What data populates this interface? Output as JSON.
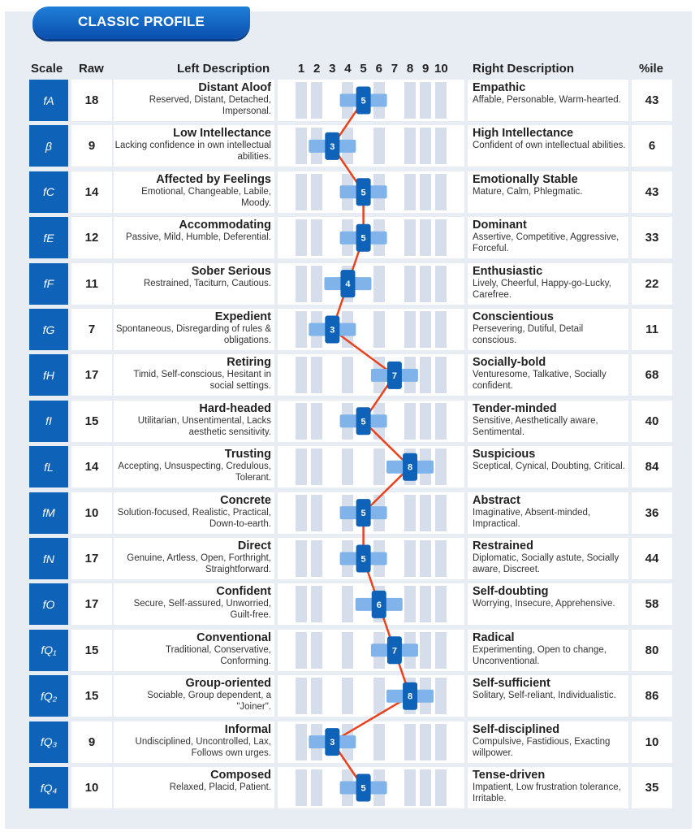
{
  "header": {
    "title": "CLASSIC PROFILE"
  },
  "columns": {
    "scale": "Scale",
    "raw": "Raw",
    "left": "Left Description",
    "right": "Right Description",
    "pct": "%ile",
    "numbers": [
      "1",
      "2",
      "3",
      "4",
      "5",
      "6",
      "7",
      "8",
      "9",
      "10"
    ]
  },
  "colors": {
    "accent": "#0e62b8",
    "line": "#e8431c",
    "band": "#7fb3ea"
  },
  "rows": [
    {
      "scale": "fA",
      "raw": "18",
      "left_title": "Distant Aloof",
      "left_desc": "Reserved, Distant, Detached, Impersonal.",
      "score": "5",
      "right_title": "Empathic",
      "right_desc": "Affable, Personable, Warm-hearted.",
      "pct": "43"
    },
    {
      "scale": "β",
      "raw": "9",
      "left_title": "Low Intellectance",
      "left_desc": "Lacking confidence in own intellectual abilities.",
      "score": "3",
      "right_title": "High Intellectance",
      "right_desc": "Confident of own intellectual abilities.",
      "pct": "6"
    },
    {
      "scale": "fC",
      "raw": "14",
      "left_title": "Affected by Feelings",
      "left_desc": "Emotional, Changeable, Labile, Moody.",
      "score": "5",
      "right_title": "Emotionally Stable",
      "right_desc": "Mature, Calm, Phlegmatic.",
      "pct": "43"
    },
    {
      "scale": "fE",
      "raw": "12",
      "left_title": "Accommodating",
      "left_desc": "Passive, Mild, Humble, Deferential.",
      "score": "5",
      "right_title": "Dominant",
      "right_desc": "Assertive, Competitive, Aggressive, Forceful.",
      "pct": "33"
    },
    {
      "scale": "fF",
      "raw": "11",
      "left_title": "Sober Serious",
      "left_desc": "Restrained, Taciturn, Cautious.",
      "score": "4",
      "right_title": "Enthusiastic",
      "right_desc": "Lively, Cheerful, Happy-go-Lucky, Carefree.",
      "pct": "22"
    },
    {
      "scale": "fG",
      "raw": "7",
      "left_title": "Expedient",
      "left_desc": "Spontaneous, Disregarding of rules & obligations.",
      "score": "3",
      "right_title": "Conscientious",
      "right_desc": "Persevering, Dutiful, Detail conscious.",
      "pct": "11"
    },
    {
      "scale": "fH",
      "raw": "17",
      "left_title": "Retiring",
      "left_desc": "Timid, Self-conscious, Hesitant in social settings.",
      "score": "7",
      "right_title": "Socially-bold",
      "right_desc": "Venturesome, Talkative, Socially confident.",
      "pct": "68"
    },
    {
      "scale": "fI",
      "raw": "15",
      "left_title": "Hard-headed",
      "left_desc": "Utilitarian, Unsentimental, Lacks aesthetic sensitivity.",
      "score": "5",
      "right_title": "Tender-minded",
      "right_desc": "Sensitive, Aesthetically aware, Sentimental.",
      "pct": "40"
    },
    {
      "scale": "fL",
      "raw": "14",
      "left_title": "Trusting",
      "left_desc": "Accepting, Unsuspecting, Credulous, Tolerant.",
      "score": "8",
      "right_title": "Suspicious",
      "right_desc": "Sceptical, Cynical, Doubting, Critical.",
      "pct": "84"
    },
    {
      "scale": "fM",
      "raw": "10",
      "left_title": "Concrete",
      "left_desc": "Solution-focused, Realistic, Practical, Down-to-earth.",
      "score": "5",
      "right_title": "Abstract",
      "right_desc": "Imaginative, Absent-minded, Impractical.",
      "pct": "36"
    },
    {
      "scale": "fN",
      "raw": "17",
      "left_title": "Direct",
      "left_desc": "Genuine, Artless, Open, Forthright, Straightforward.",
      "score": "5",
      "right_title": "Restrained",
      "right_desc": "Diplomatic, Socially astute, Socially aware, Discreet.",
      "pct": "44"
    },
    {
      "scale": "fO",
      "raw": "17",
      "left_title": "Confident",
      "left_desc": "Secure, Self-assured, Unworried, Guilt-free.",
      "score": "6",
      "right_title": "Self-doubting",
      "right_desc": "Worrying, Insecure, Apprehensive.",
      "pct": "58"
    },
    {
      "scale": "fQ₁",
      "raw": "15",
      "left_title": "Conventional",
      "left_desc": "Traditional, Conservative, Conforming.",
      "score": "7",
      "right_title": "Radical",
      "right_desc": "Experimenting, Open to change, Unconventional.",
      "pct": "80"
    },
    {
      "scale": "fQ₂",
      "raw": "15",
      "left_title": "Group-oriented",
      "left_desc": "Sociable, Group dependent, a \"Joiner\".",
      "score": "8",
      "right_title": "Self-sufficient",
      "right_desc": "Solitary, Self-reliant, Individualistic.",
      "pct": "86"
    },
    {
      "scale": "fQ₃",
      "raw": "9",
      "left_title": "Informal",
      "left_desc": "Undisciplined, Uncontrolled, Lax, Follows own urges.",
      "score": "3",
      "right_title": "Self-disciplined",
      "right_desc": "Compulsive, Fastidious, Exacting willpower.",
      "pct": "10"
    },
    {
      "scale": "fQ₄",
      "raw": "10",
      "left_title": "Composed",
      "left_desc": "Relaxed, Placid, Patient.",
      "score": "5",
      "right_title": "Tense-driven",
      "right_desc": "Impatient, Low frustration tolerance, Irritable.",
      "pct": "35"
    }
  ]
}
